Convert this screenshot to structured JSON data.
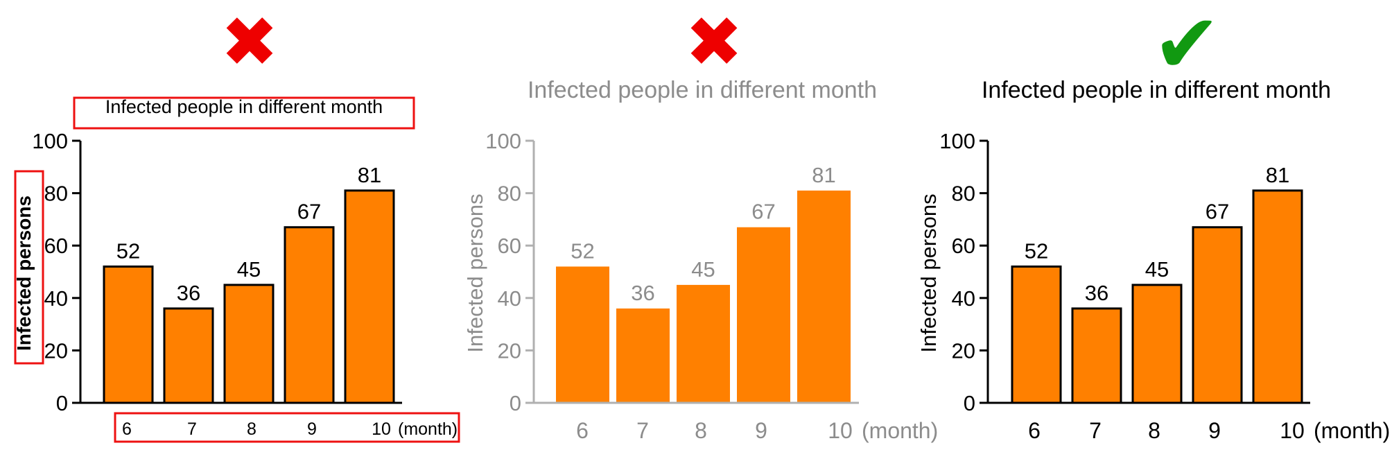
{
  "colors": {
    "bar": "#FF8000",
    "bar_border": "#000000",
    "cross": "#EE0000",
    "check": "#119911",
    "dim_text": "#8C8C8C",
    "dim_axis": "#B0B0B0",
    "highlight": "#EE1111"
  },
  "marks": [
    {
      "icon": "cross-icon",
      "glyph": "✖"
    },
    {
      "icon": "cross-icon",
      "glyph": "✖"
    },
    {
      "icon": "check-icon",
      "glyph": "✔"
    }
  ],
  "chart_data": [
    {
      "type": "bar",
      "title": "Infected people in different month",
      "ylabel": "Infected persons",
      "xunit": "(month)",
      "categories": [
        "6",
        "7",
        "8",
        "9",
        "10"
      ],
      "values": [
        52,
        36,
        45,
        67,
        81
      ],
      "ylim": [
        0,
        100
      ],
      "yticks": [
        0,
        20,
        40,
        60,
        80,
        100
      ],
      "style": "highlighted",
      "grid": false
    },
    {
      "type": "bar",
      "title": "Infected people in different month",
      "ylabel": "Infected persons",
      "xunit": "(month)",
      "categories": [
        "6",
        "7",
        "8",
        "9",
        "10"
      ],
      "values": [
        52,
        36,
        45,
        67,
        81
      ],
      "ylim": [
        0,
        100
      ],
      "yticks": [
        0,
        20,
        40,
        60,
        80,
        100
      ],
      "style": "faded",
      "grid": false
    },
    {
      "type": "bar",
      "title": "Infected people in different month",
      "ylabel": "Infected persons",
      "xunit": "(month)",
      "categories": [
        "6",
        "7",
        "8",
        "9",
        "10"
      ],
      "values": [
        52,
        36,
        45,
        67,
        81
      ],
      "ylim": [
        0,
        100
      ],
      "yticks": [
        0,
        20,
        40,
        60,
        80,
        100
      ],
      "style": "good",
      "grid": false
    }
  ]
}
